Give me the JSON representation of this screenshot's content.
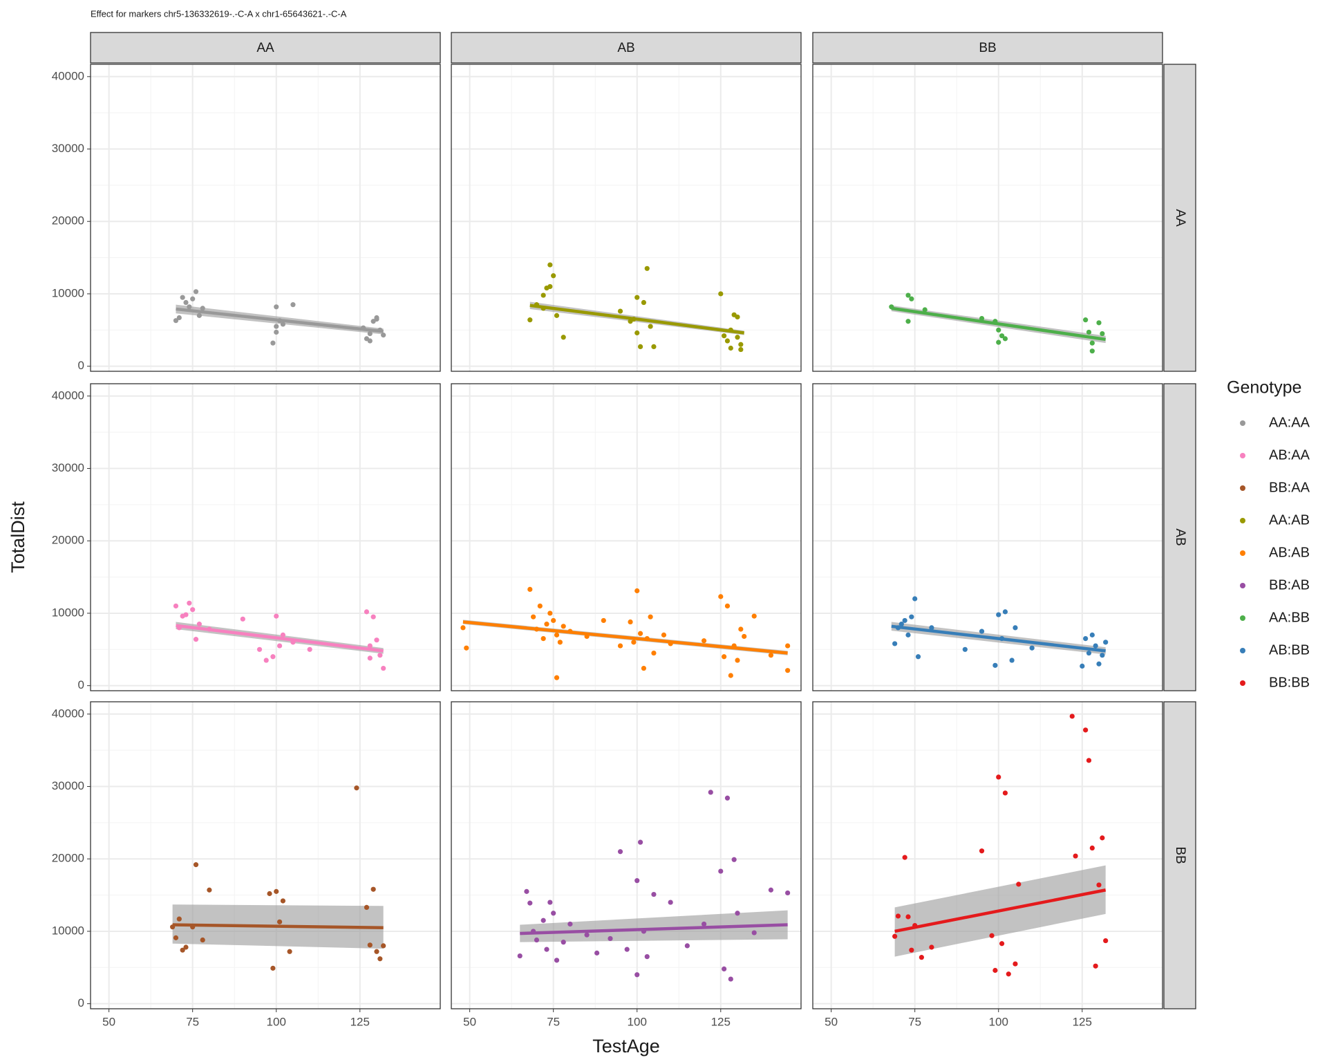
{
  "chart_data": {
    "type": "scatter",
    "title": "Effect for markers chr5-136332619-.-C-A x chr1-65643621-.-C-A",
    "x_label": "TestAge",
    "y_label": "TotalDist",
    "col_labels": [
      "AA",
      "AB",
      "BB"
    ],
    "row_labels": [
      "AA",
      "AB",
      "BB"
    ],
    "legend_title": "Genotype",
    "grid": true,
    "xlim": [
      44.5,
      149
    ],
    "xticks": [
      50,
      75,
      100,
      125
    ],
    "ylim": [
      -700,
      41700
    ],
    "yticks": [
      0,
      10000,
      20000,
      30000,
      40000
    ],
    "series": [
      {
        "name": "AA:AA",
        "color": "#999999",
        "x": [
          70,
          72,
          73,
          75,
          76,
          77,
          74,
          71,
          78,
          100,
          101,
          99,
          100,
          102,
          105,
          100,
          127,
          128,
          129,
          130,
          131,
          132,
          126,
          128,
          130
        ],
        "values": [
          6300,
          9500,
          8800,
          9300,
          10300,
          7000,
          8200,
          6700,
          8000,
          8200,
          6300,
          3200,
          5500,
          5800,
          8500,
          4700,
          3800,
          4500,
          6200,
          6500,
          5000,
          4300,
          5300,
          3500,
          6700
        ],
        "fit": {
          "x": [
            70,
            132
          ],
          "values": [
            7900,
            4800
          ],
          "lower": [
            7300,
            4400
          ],
          "upper": [
            8500,
            5200
          ]
        }
      },
      {
        "name": "AB:AA",
        "color": "#f781bf",
        "x": [
          70,
          71,
          72,
          73,
          74,
          75,
          76,
          77,
          80,
          90,
          95,
          97,
          99,
          100,
          101,
          102,
          105,
          110,
          127,
          128,
          129,
          130,
          131,
          132,
          128
        ],
        "values": [
          11000,
          8000,
          9600,
          9800,
          11400,
          10500,
          6400,
          8500,
          7800,
          9200,
          5000,
          3500,
          4000,
          9600,
          5500,
          7000,
          6000,
          5000,
          10200,
          3800,
          9500,
          6300,
          4200,
          2400,
          5500
        ],
        "fit": {
          "x": [
            70,
            132
          ],
          "values": [
            8300,
            4800
          ],
          "lower": [
            7800,
            4400
          ],
          "upper": [
            8800,
            5200
          ]
        }
      },
      {
        "name": "BB:AA",
        "color": "#a65628",
        "x": [
          69,
          70,
          71,
          72,
          73,
          75,
          76,
          78,
          80,
          98,
          99,
          100,
          101,
          102,
          104,
          127,
          128,
          129,
          130,
          131,
          132,
          124
        ],
        "values": [
          10600,
          9100,
          11700,
          7400,
          7800,
          10600,
          19200,
          8800,
          15700,
          15200,
          4900,
          15500,
          11300,
          14200,
          7200,
          13300,
          8100,
          15800,
          7200,
          6200,
          8000,
          29800
        ],
        "fit": {
          "x": [
            69,
            132
          ],
          "values": [
            10900,
            10500
          ],
          "lower": [
            8300,
            7600
          ],
          "upper": [
            13700,
            13500
          ]
        }
      },
      {
        "name": "AA:AB",
        "color": "#999900",
        "x": [
          68,
          70,
          72,
          73,
          74,
          75,
          76,
          78,
          72,
          74,
          95,
          98,
          100,
          101,
          102,
          103,
          100,
          104,
          99,
          105,
          125,
          126,
          127,
          128,
          129,
          130,
          131,
          128,
          130,
          131
        ],
        "values": [
          6400,
          8500,
          9800,
          10800,
          14000,
          12500,
          7000,
          4000,
          8000,
          11000,
          7600,
          6200,
          4600,
          2700,
          8800,
          13500,
          9500,
          5500,
          6500,
          2700,
          10000,
          4200,
          3500,
          5000,
          7100,
          6800,
          3000,
          2500,
          4000,
          2300
        ],
        "fit": {
          "x": [
            68,
            132
          ],
          "values": [
            8400,
            4600
          ],
          "lower": [
            7900,
            4300
          ],
          "upper": [
            8900,
            4900
          ]
        }
      },
      {
        "name": "AB:AB",
        "color": "#ff7f00",
        "x": [
          48,
          49,
          68,
          69,
          70,
          71,
          72,
          73,
          74,
          75,
          76,
          77,
          78,
          80,
          85,
          90,
          95,
          98,
          99,
          100,
          101,
          102,
          103,
          104,
          105,
          108,
          110,
          120,
          125,
          126,
          127,
          128,
          129,
          130,
          131,
          132,
          135,
          140,
          145,
          145,
          76
        ],
        "values": [
          8000,
          5200,
          13300,
          9500,
          7800,
          11000,
          6500,
          8500,
          10000,
          9000,
          7000,
          6000,
          8200,
          7500,
          6800,
          9000,
          5500,
          8800,
          6000,
          13100,
          7200,
          2400,
          6500,
          9500,
          4500,
          7000,
          5800,
          6200,
          12300,
          4000,
          11000,
          1400,
          5500,
          3500,
          7800,
          6800,
          9600,
          4200,
          5500,
          2100,
          1100
        ],
        "fit": {
          "x": [
            48,
            145
          ],
          "values": [
            8800,
            4500
          ],
          "lower": [
            8500,
            4200
          ],
          "upper": [
            9100,
            4800
          ]
        }
      },
      {
        "name": "BB:AB",
        "color": "#984ea3",
        "x": [
          65,
          67,
          68,
          69,
          70,
          72,
          73,
          74,
          75,
          76,
          78,
          80,
          85,
          88,
          92,
          95,
          97,
          100,
          100,
          101,
          102,
          103,
          105,
          110,
          115,
          120,
          122,
          125,
          126,
          127,
          128,
          129,
          130,
          135,
          140,
          145
        ],
        "values": [
          6600,
          15500,
          13900,
          10000,
          8800,
          11500,
          7500,
          14000,
          12500,
          6000,
          8500,
          11000,
          9500,
          7000,
          9000,
          21000,
          7500,
          17000,
          4000,
          22300,
          10000,
          6500,
          15100,
          14000,
          8000,
          11000,
          29200,
          18300,
          4800,
          28400,
          3400,
          19900,
          12500,
          9800,
          15700,
          15300
        ],
        "fit": {
          "x": [
            65,
            145
          ],
          "values": [
            9700,
            10900
          ],
          "lower": [
            8500,
            8900
          ],
          "upper": [
            10900,
            12900
          ]
        }
      },
      {
        "name": "AA:BB",
        "color": "#4daf4a",
        "x": [
          68,
          73,
          73,
          74,
          78,
          95,
          99,
          100,
          100,
          101,
          102,
          126,
          127,
          128,
          128,
          130,
          131
        ],
        "values": [
          8200,
          9800,
          6200,
          9300,
          7800,
          6600,
          6200,
          3300,
          5000,
          4200,
          3800,
          6400,
          4700,
          2100,
          3200,
          6000,
          4500
        ],
        "fit": {
          "x": [
            68,
            132
          ],
          "values": [
            8000,
            3700
          ],
          "lower": [
            7600,
            3200
          ],
          "upper": [
            8400,
            4200
          ]
        }
      },
      {
        "name": "AB:BB",
        "color": "#377eb8",
        "x": [
          69,
          70,
          71,
          72,
          73,
          74,
          75,
          76,
          80,
          90,
          95,
          99,
          100,
          101,
          102,
          104,
          105,
          110,
          125,
          126,
          127,
          128,
          129,
          130,
          131,
          132
        ],
        "values": [
          5800,
          8000,
          8500,
          9000,
          7000,
          9500,
          12000,
          4000,
          8000,
          5000,
          7500,
          2800,
          9800,
          6500,
          10200,
          3500,
          8000,
          5200,
          2700,
          6500,
          4500,
          7000,
          5500,
          3000,
          4200,
          6000
        ],
        "fit": {
          "x": [
            68,
            132
          ],
          "values": [
            8200,
            4800
          ],
          "lower": [
            7600,
            4300
          ],
          "upper": [
            8800,
            5300
          ]
        }
      },
      {
        "name": "BB:BB",
        "color": "#e41a1c",
        "x": [
          69,
          70,
          72,
          73,
          74,
          75,
          77,
          80,
          95,
          98,
          99,
          100,
          101,
          102,
          103,
          105,
          106,
          122,
          123,
          126,
          127,
          128,
          129,
          130,
          131,
          132
        ],
        "values": [
          9300,
          12100,
          20200,
          12000,
          7400,
          10800,
          6400,
          7800,
          21100,
          9400,
          4600,
          31300,
          8300,
          29100,
          4100,
          5500,
          16500,
          39700,
          20400,
          37800,
          33600,
          21500,
          5200,
          16400,
          22900,
          8700
        ],
        "fit": {
          "x": [
            69,
            132
          ],
          "values": [
            10000,
            15700
          ],
          "lower": [
            6500,
            12400
          ],
          "upper": [
            13300,
            19100
          ]
        }
      }
    ]
  }
}
